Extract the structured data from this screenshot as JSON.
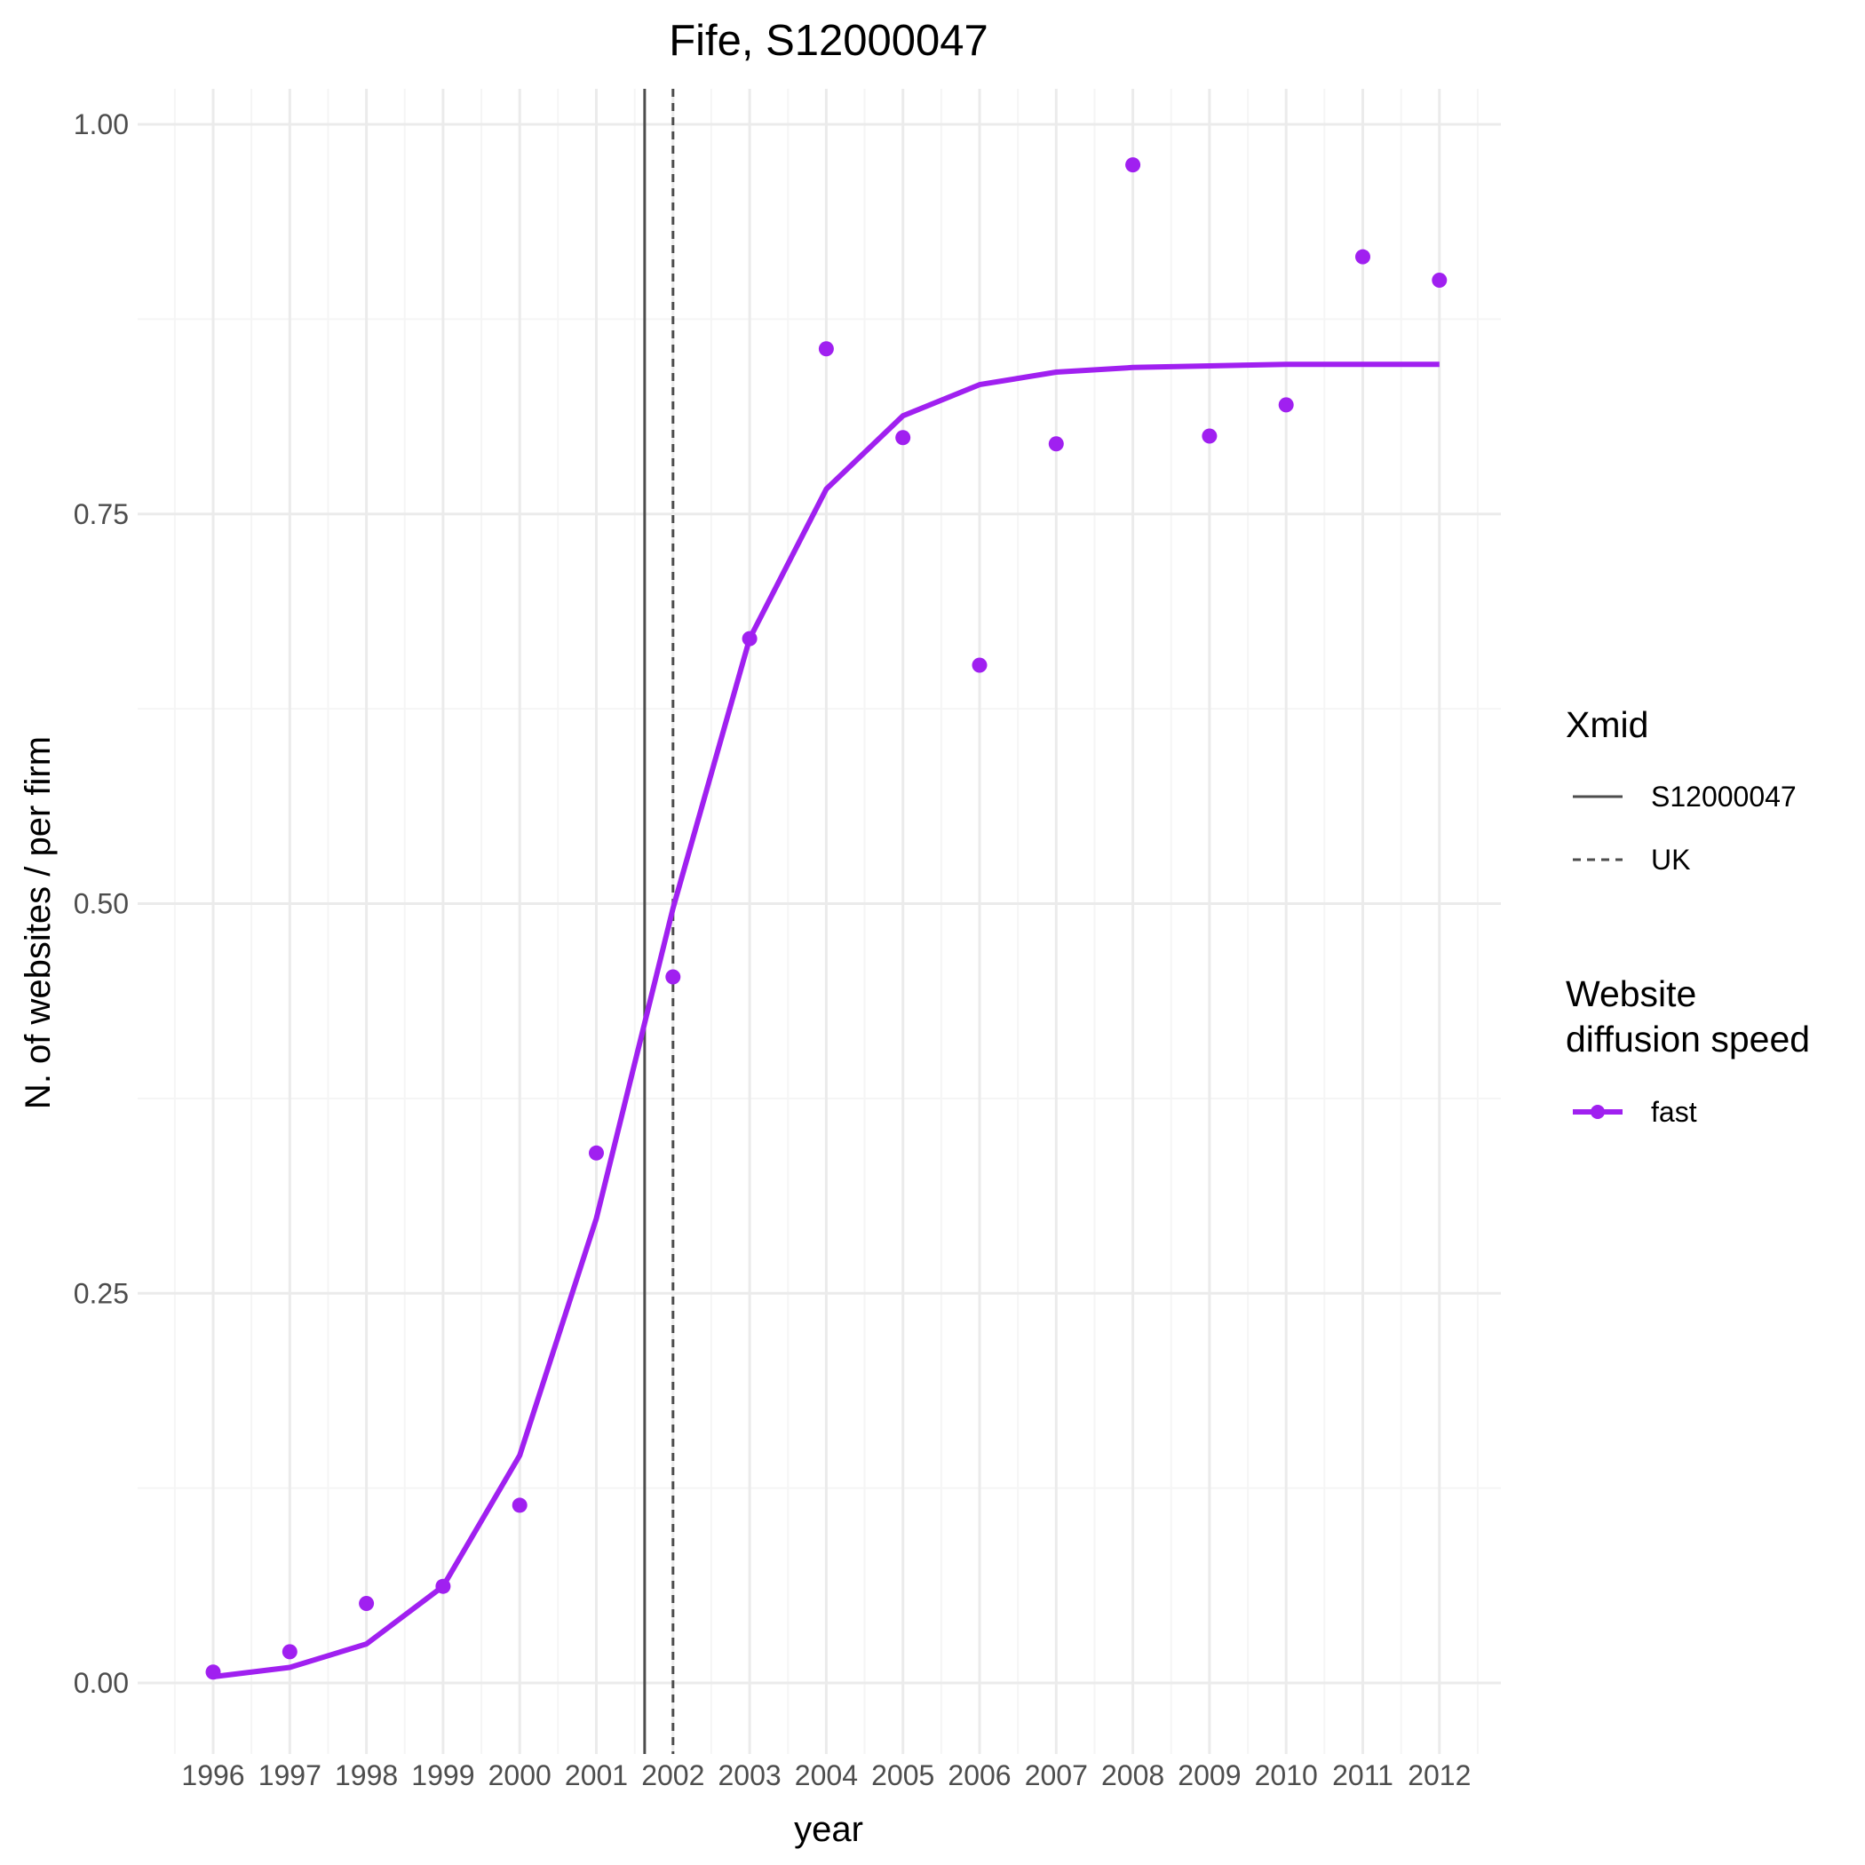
{
  "chart_data": {
    "type": "line",
    "title": "Fife, S12000047",
    "xlabel": "year",
    "ylabel": "N. of websites / per firm",
    "x_categories": [
      "1996",
      "1997",
      "1998",
      "1999",
      "2000",
      "2001",
      "2002",
      "2003",
      "2004",
      "2005",
      "2006",
      "2007",
      "2008",
      "2009",
      "2010",
      "2011",
      "2012"
    ],
    "y_ticks": [
      "0.00",
      "0.25",
      "0.50",
      "0.75",
      "1.00"
    ],
    "ylim": [
      -0.045,
      1.02
    ],
    "xlim": [
      1995.5,
      2012.5
    ],
    "grid": true,
    "points": {
      "x": [
        1996,
        1997,
        1998,
        1999,
        2000,
        2001,
        2002,
        2003,
        2004,
        2005,
        2006,
        2007,
        2008,
        2009,
        2010,
        2011,
        2012
      ],
      "y": [
        0.007,
        0.02,
        0.051,
        0.062,
        0.114,
        0.34,
        0.453,
        0.67,
        0.856,
        0.799,
        0.653,
        0.795,
        0.974,
        0.8,
        0.82,
        0.915,
        0.9
      ]
    },
    "fitted_line": {
      "x": [
        1996,
        1997,
        1998,
        1999,
        2000,
        2001,
        2002,
        2003,
        2004,
        2005,
        2006,
        2007,
        2008,
        2009,
        2010,
        2011,
        2012
      ],
      "y": [
        0.004,
        0.01,
        0.025,
        0.062,
        0.146,
        0.298,
        0.497,
        0.67,
        0.766,
        0.813,
        0.833,
        0.841,
        0.844,
        0.845,
        0.846,
        0.846,
        0.846
      ]
    },
    "vlines": [
      {
        "name": "S12000047",
        "x": 2001.63,
        "style": "solid"
      },
      {
        "name": "UK",
        "x": 2002.0,
        "style": "dashed"
      }
    ],
    "legend": {
      "placement": "right",
      "xmid_title": "Xmid",
      "xmid_entries": [
        "S12000047",
        "UK"
      ],
      "speed_title_line1": "Website",
      "speed_title_line2": "diffusion speed",
      "speed_entries": [
        "fast"
      ]
    },
    "colors": {
      "series": "#a020f0",
      "vline": "#4d4d4d",
      "grid_major": "#ebebeb",
      "grid_minor": "#f5f5f5"
    }
  }
}
